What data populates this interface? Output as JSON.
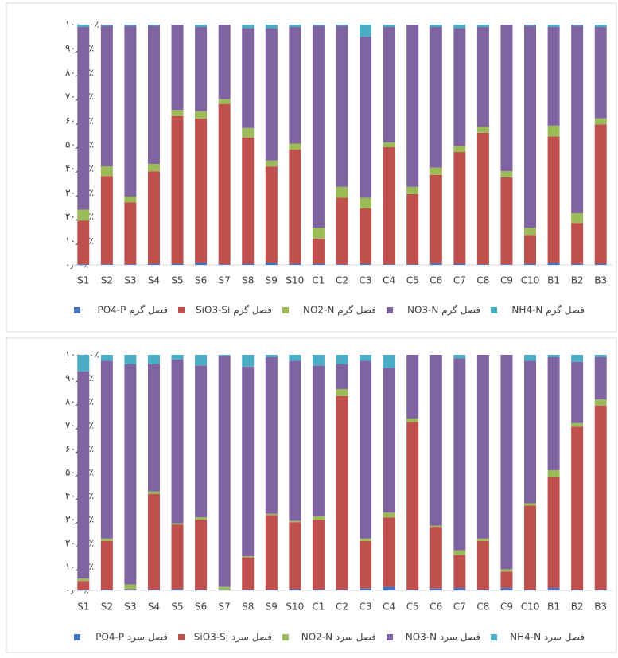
{
  "chart_data": [
    {
      "type": "stacked_bar",
      "categories": [
        "S1",
        "S2",
        "S3",
        "S4",
        "S5",
        "S6",
        "S7",
        "S8",
        "S9",
        "S10",
        "C1",
        "C2",
        "C3",
        "C4",
        "C5",
        "C6",
        "C7",
        "C8",
        "C9",
        "C10",
        "B1",
        "B2",
        "B3"
      ],
      "ylim": [
        0,
        100
      ],
      "yticks": [
        {
          "value": 0,
          "label": "۰٫۰۰٪"
        },
        {
          "value": 10,
          "label": "۱۰٫۰۰٪"
        },
        {
          "value": 20,
          "label": "۲۰٫۰۰٪"
        },
        {
          "value": 30,
          "label": "۳۰٫۰۰٪"
        },
        {
          "value": 40,
          "label": "۴۰٫۰۰٪"
        },
        {
          "value": 50,
          "label": "۵۰٫۰۰٪"
        },
        {
          "value": 60,
          "label": "۶۰٫۰۰٪"
        },
        {
          "value": 70,
          "label": "۷۰٫۰۰٪"
        },
        {
          "value": 80,
          "label": "۸۰٫۰۰٪"
        },
        {
          "value": 90,
          "label": "۹۰٫۰۰٪"
        },
        {
          "value": 100,
          "label": "۱۰۰٫۰۰٪"
        }
      ],
      "series": [
        {
          "name": "فصل گرم PO4-P",
          "color": "#4472c4",
          "values": [
            0.3,
            0.3,
            0.3,
            0.5,
            0.5,
            1,
            0.3,
            0.5,
            1,
            0.5,
            0.5,
            0.3,
            0.5,
            0.3,
            0.3,
            0.8,
            0.5,
            0.3,
            0.3,
            0.5,
            1,
            0.5,
            0.5
          ]
        },
        {
          "name": "فصل گرم SiO3-Si",
          "color": "#c0504d",
          "values": [
            18.2,
            36.7,
            25.7,
            38.5,
            61.5,
            60,
            66.7,
            52.5,
            40,
            47.5,
            10.5,
            27.7,
            23,
            48.7,
            29.2,
            36.7,
            46.5,
            54.7,
            36.2,
            12,
            52.5,
            17,
            58
          ]
        },
        {
          "name": "فصل گرم NO2-N",
          "color": "#9bbb59",
          "values": [
            4.5,
            4,
            2.5,
            3,
            2.5,
            3,
            2,
            4,
            2.5,
            2.5,
            4.5,
            4.5,
            4.5,
            2,
            3,
            3,
            2.5,
            2.5,
            2.5,
            3,
            4.5,
            4,
            2.5
          ]
        },
        {
          "name": "فصل گرم NO3-N",
          "color": "#8064a2",
          "values": [
            76,
            58.5,
            71,
            57.5,
            35.5,
            35,
            31,
            41.5,
            55,
            48.5,
            84,
            67,
            67,
            48,
            67.5,
            58.5,
            49,
            41.5,
            61,
            84,
            41,
            78,
            38
          ]
        },
        {
          "name": "فصل گرم NH4-N",
          "color": "#4bacc6",
          "values": [
            1,
            0.5,
            0.5,
            0.5,
            0,
            1,
            0,
            1.5,
            1.5,
            1,
            0.5,
            0.5,
            5,
            1,
            0,
            1,
            1.5,
            1,
            0,
            0.5,
            1,
            0.5,
            1
          ]
        }
      ]
    },
    {
      "type": "stacked_bar",
      "categories": [
        "S1",
        "S2",
        "S3",
        "S4",
        "S5",
        "S6",
        "S7",
        "S8",
        "S9",
        "S10",
        "C1",
        "C2",
        "C3",
        "C4",
        "C5",
        "C6",
        "C7",
        "C8",
        "C9",
        "C10",
        "B1",
        "B2",
        "B3"
      ],
      "ylim": [
        0,
        100
      ],
      "yticks": [
        {
          "value": 0,
          "label": "۰٫۰۰٪"
        },
        {
          "value": 10,
          "label": "۱۰٫۰۰٪"
        },
        {
          "value": 20,
          "label": "۲۰٫۰۰٪"
        },
        {
          "value": 30,
          "label": "۳۰٫۰۰٪"
        },
        {
          "value": 40,
          "label": "۴۰٫۰۰٪"
        },
        {
          "value": 50,
          "label": "۵۰٫۰۰٪"
        },
        {
          "value": 60,
          "label": "۶۰٫۰۰٪"
        },
        {
          "value": 70,
          "label": "۷۰٫۰۰٪"
        },
        {
          "value": 80,
          "label": "۸۰٫۰۰٪"
        },
        {
          "value": 90,
          "label": "۹۰٫۰۰٪"
        },
        {
          "value": 100,
          "label": "۱۰۰٫۰۰٪"
        }
      ],
      "series": [
        {
          "name": "فصل سرد PO4-P",
          "color": "#4472c4",
          "values": [
            0.3,
            0.3,
            0.3,
            0.3,
            0.5,
            0.3,
            0.3,
            0.3,
            0.3,
            0.5,
            0.3,
            0.3,
            0.8,
            1.5,
            0.3,
            0.8,
            1,
            0.3,
            1,
            0.3,
            1,
            0.3,
            0.3
          ]
        },
        {
          "name": "فصل سرد SiO3-Si",
          "color": "#c0504d",
          "values": [
            3.7,
            20.7,
            0.2,
            40.7,
            27.5,
            29.7,
            0,
            13.7,
            31.7,
            28.5,
            29.7,
            82.2,
            20.2,
            29.5,
            71.2,
            26.2,
            14,
            20.7,
            7,
            35.7,
            47,
            69.2,
            78.2
          ]
        },
        {
          "name": "فصل سرد NO2-N",
          "color": "#9bbb59",
          "values": [
            1,
            1,
            2,
            1,
            0.5,
            1,
            1.2,
            0.5,
            0.5,
            0.5,
            1.5,
            3,
            1,
            2,
            1.5,
            0.5,
            2,
            1,
            1,
            1,
            3,
            1.5,
            2.5
          ]
        },
        {
          "name": "فصل سرد NO3-N",
          "color": "#8064a2",
          "values": [
            88,
            75.5,
            93.5,
            54,
            69.5,
            64.5,
            98,
            80.5,
            66.5,
            68,
            64,
            10.5,
            75.5,
            61.5,
            27,
            72.5,
            81.5,
            78,
            91,
            60.5,
            48,
            26,
            18
          ]
        },
        {
          "name": "فصل سرد NH4-N",
          "color": "#4bacc6",
          "values": [
            7,
            2.5,
            4,
            4,
            2,
            4.5,
            0.5,
            5,
            1,
            2.5,
            4.5,
            4,
            2.5,
            5.5,
            0,
            0,
            1.5,
            0,
            0,
            2.5,
            1,
            3,
            1
          ]
        }
      ]
    }
  ]
}
